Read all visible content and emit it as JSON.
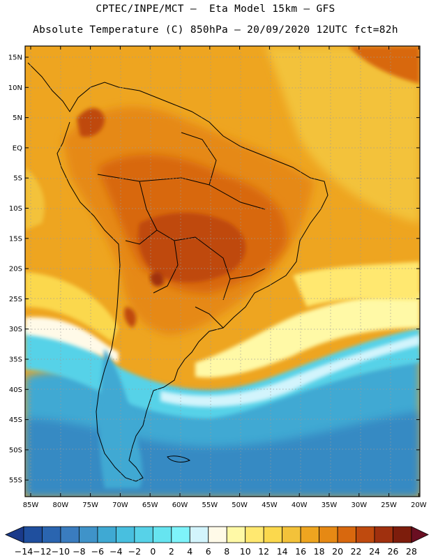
{
  "header": {
    "line1": "CPTEC/INPE/MCT –  Eta Model 15km – GFS",
    "line2": "Absolute Temperature (C) 850hPa – 20/09/2020 12UTC fct=82h"
  },
  "map": {
    "lat_ticks": [
      "15N",
      "10N",
      "5N",
      "EQ",
      "5S",
      "10S",
      "15S",
      "20S",
      "25S",
      "30S",
      "35S",
      "40S",
      "45S",
      "50S",
      "55S"
    ],
    "lon_ticks": [
      "85W",
      "80W",
      "75W",
      "70W",
      "65W",
      "60W",
      "55W",
      "50W",
      "45W",
      "40W",
      "35W",
      "30W",
      "25W",
      "20W"
    ],
    "grid": "dotted"
  },
  "colorbar": {
    "labels": [
      "-14",
      "-12",
      "-10",
      "-8",
      "-6",
      "-4",
      "-2",
      "0",
      "2",
      "4",
      "6",
      "8",
      "10",
      "12",
      "14",
      "16",
      "18",
      "20",
      "22",
      "24",
      "26",
      "28"
    ],
    "colors": [
      "#1a3a8a",
      "#1f4f9e",
      "#2a65b0",
      "#3a7cbf",
      "#3f93c9",
      "#3fa9d3",
      "#48bfdf",
      "#57d2e8",
      "#66e4f0",
      "#7ef3fa",
      "#d2f4fc",
      "#fffae8",
      "#fff9a6",
      "#ffe870",
      "#fbd84d",
      "#f3c23a",
      "#eea520",
      "#e68914",
      "#d8680e",
      "#bf4a0e",
      "#a0300e",
      "#7d1d0c",
      "#6a0f22"
    ]
  }
}
